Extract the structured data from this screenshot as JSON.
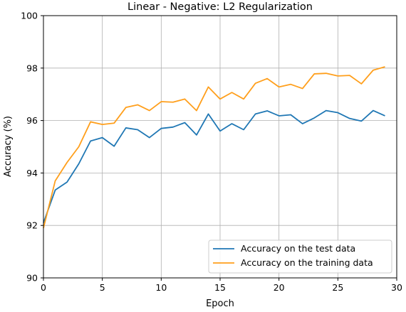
{
  "chart_data": {
    "type": "line",
    "title": "Linear - Negative:  L2 Regularization",
    "xlabel": "Epoch",
    "ylabel": "Accuracy (%)",
    "xlim": [
      0,
      30
    ],
    "ylim": [
      90,
      100
    ],
    "xticks": [
      "0",
      "5",
      "10",
      "15",
      "20",
      "25",
      "30"
    ],
    "yticks": [
      "90",
      "92",
      "94",
      "96",
      "98",
      "100"
    ],
    "grid": true,
    "legend_position": "bottom-right",
    "x": [
      0,
      1,
      2,
      3,
      4,
      5,
      6,
      7,
      8,
      9,
      10,
      11,
      12,
      13,
      14,
      15,
      16,
      17,
      18,
      19,
      20,
      21,
      22,
      23,
      24,
      25,
      26,
      27,
      28,
      29
    ],
    "series": [
      {
        "name": "Accuracy on the test data",
        "color": "#1f77b4",
        "values": [
          92.1,
          93.35,
          93.65,
          94.35,
          95.22,
          95.35,
          95.02,
          95.72,
          95.65,
          95.35,
          95.7,
          95.75,
          95.92,
          95.45,
          96.25,
          95.6,
          95.88,
          95.65,
          96.25,
          96.37,
          96.18,
          96.22,
          95.88,
          96.1,
          96.38,
          96.3,
          96.08,
          95.98,
          96.38,
          96.18
        ]
      },
      {
        "name": "Accuracy on the training data",
        "color": "#ff9f1c",
        "values": [
          91.9,
          93.7,
          94.4,
          95.0,
          95.95,
          95.85,
          95.9,
          96.5,
          96.6,
          96.38,
          96.72,
          96.7,
          96.82,
          96.38,
          97.28,
          96.82,
          97.07,
          96.82,
          97.42,
          97.6,
          97.28,
          97.38,
          97.22,
          97.78,
          97.8,
          97.7,
          97.72,
          97.4,
          97.92,
          98.05
        ]
      }
    ]
  }
}
